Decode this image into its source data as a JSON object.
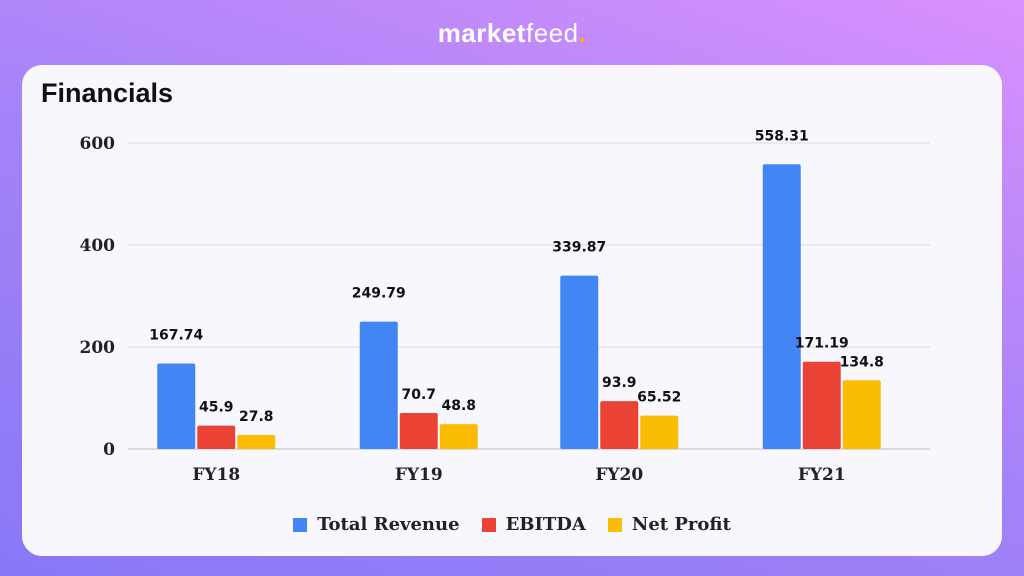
{
  "brand": {
    "name_bold": "market",
    "name_light": "feed",
    "dot": "."
  },
  "title": "Financials",
  "chart_data": {
    "type": "bar",
    "categories": [
      "FY18",
      "FY19",
      "FY20",
      "FY21"
    ],
    "series": [
      {
        "name": "Total Revenue",
        "color": "#4285f4",
        "values": [
          167.74,
          249.79,
          339.87,
          558.31
        ]
      },
      {
        "name": "EBITDA",
        "color": "#ea4335",
        "values": [
          45.9,
          70.7,
          93.9,
          171.19
        ]
      },
      {
        "name": "Net Profit",
        "color": "#fbbc04",
        "values": [
          27.8,
          48.8,
          65.52,
          134.8
        ]
      }
    ],
    "yticks": [
      0,
      200,
      400,
      600
    ],
    "ylim": [
      0,
      600
    ],
    "grid": true,
    "legend": "bottom"
  }
}
